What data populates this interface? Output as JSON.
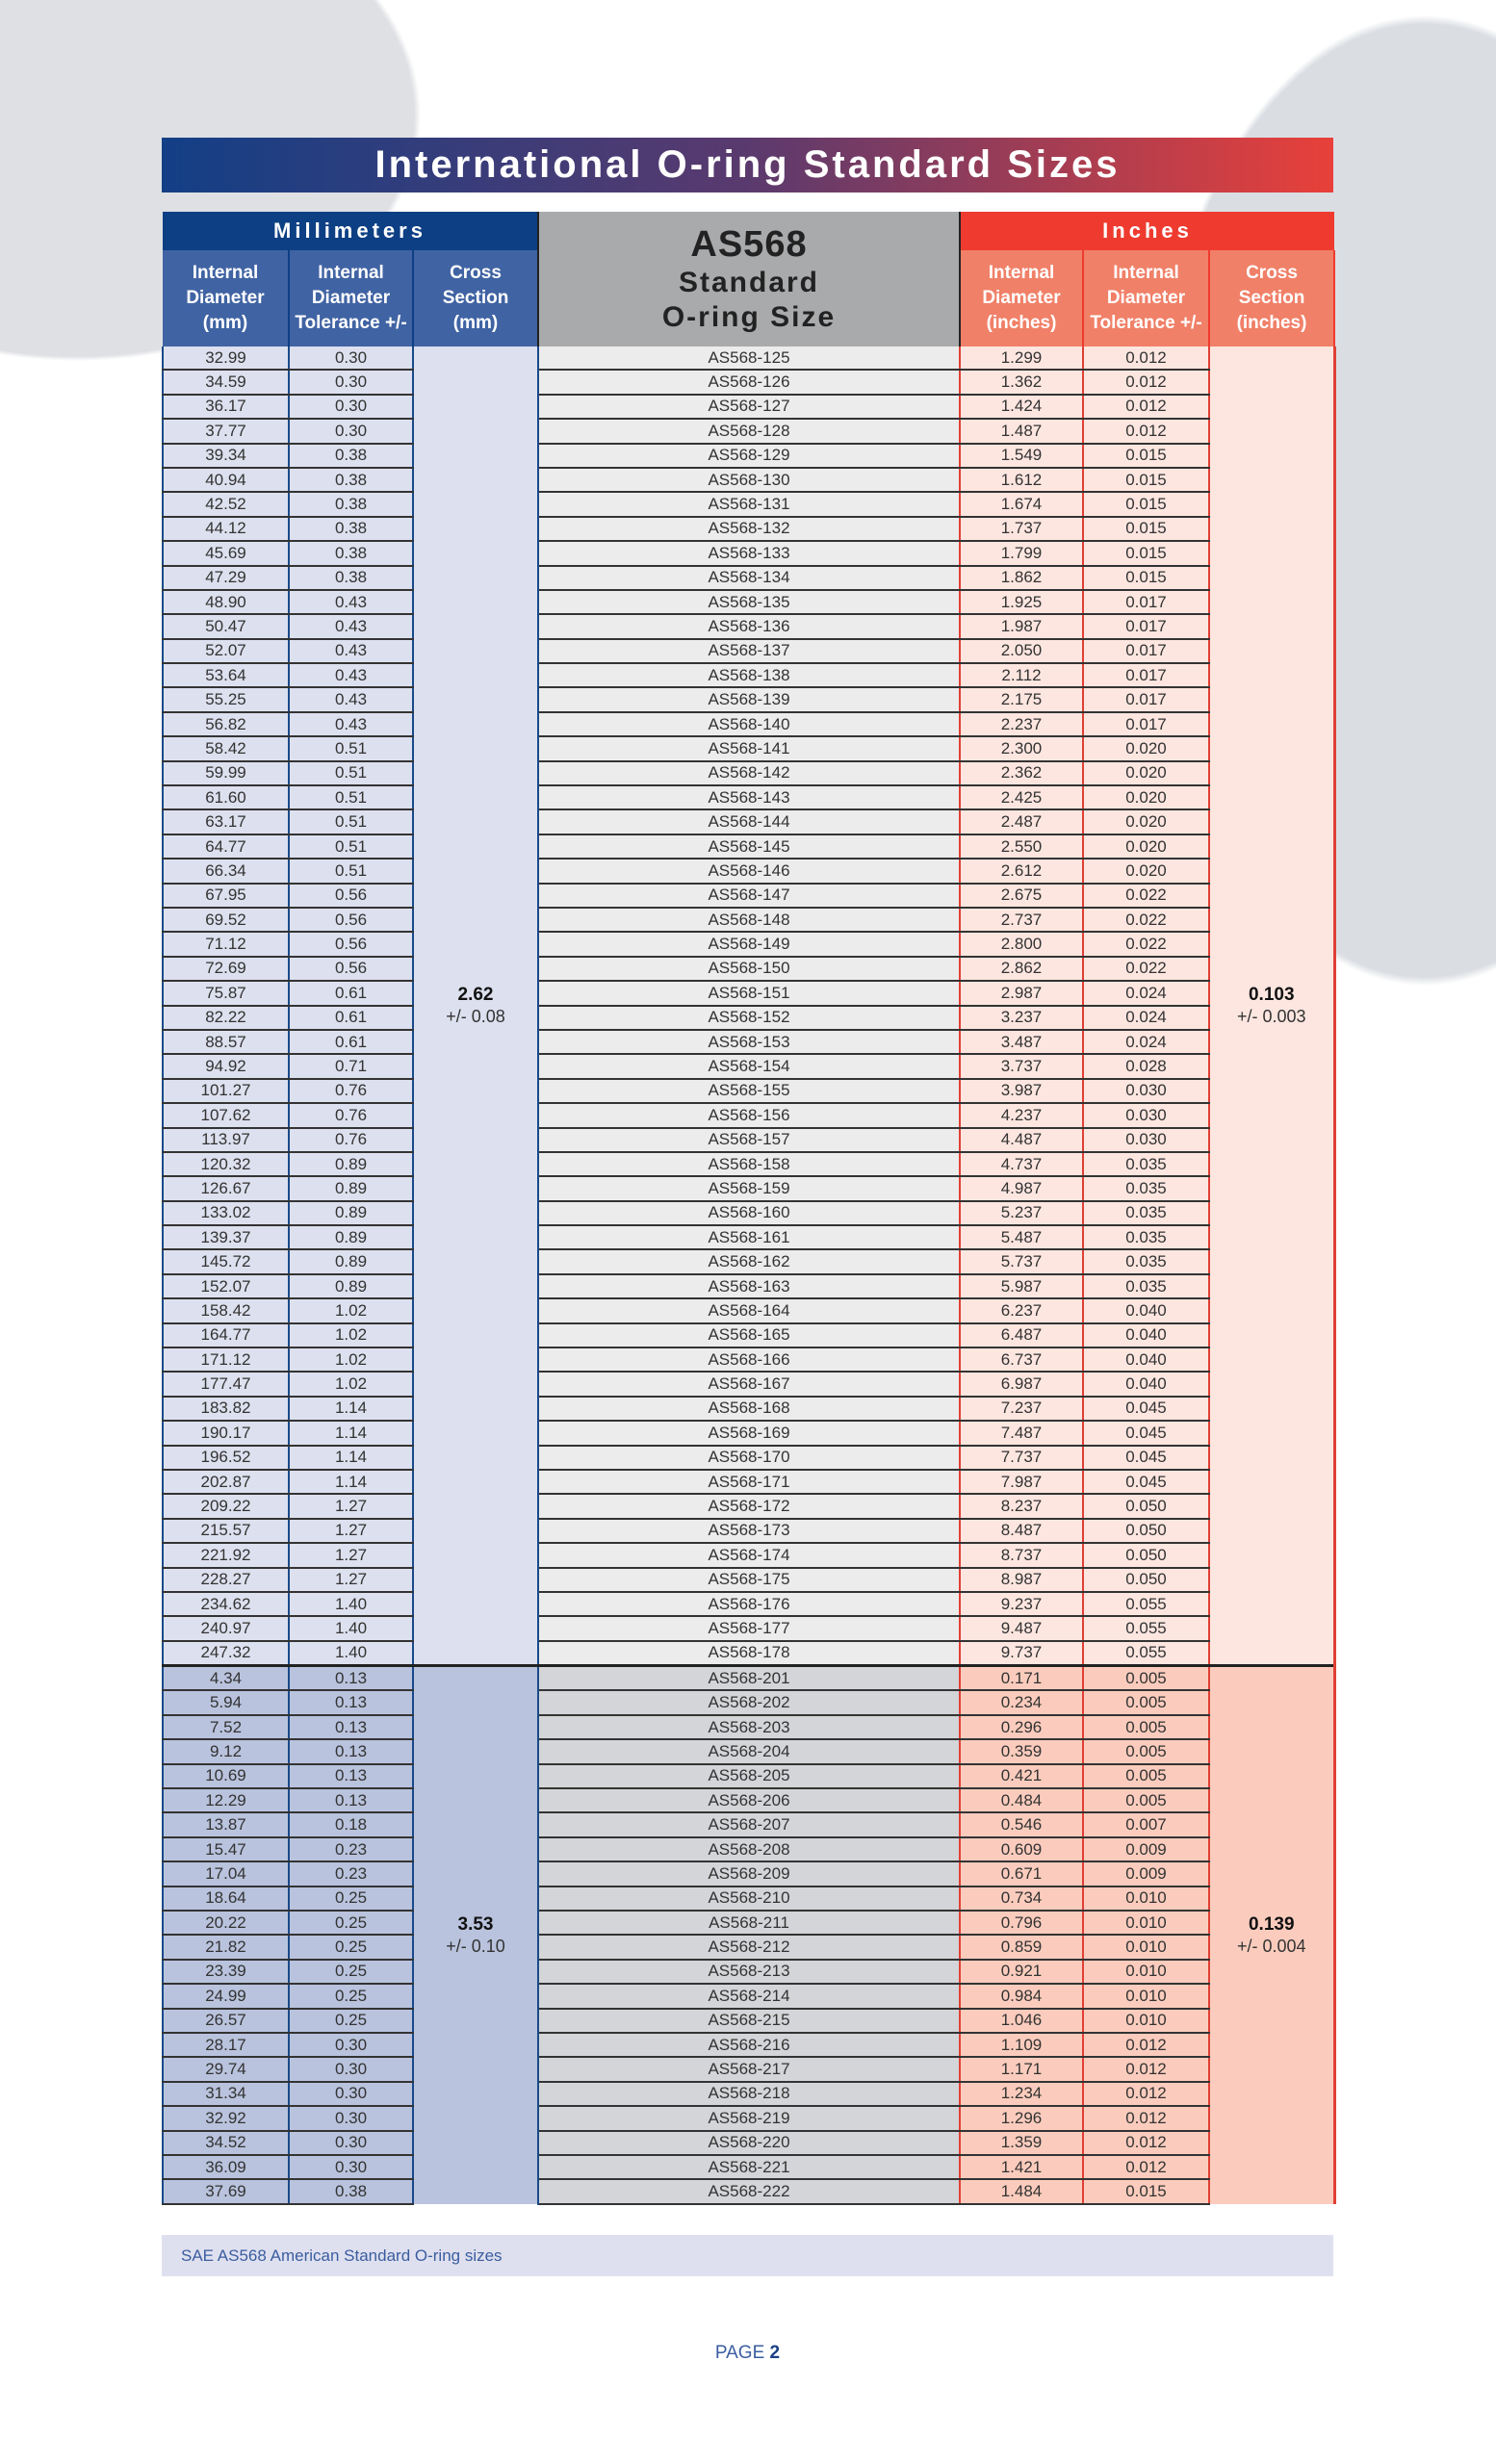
{
  "title": "International O-ring Standard Sizes",
  "header": {
    "mm_group": "Millimeters",
    "inch_group": "Inches",
    "as_title": "AS568",
    "as_sub1": "Standard",
    "as_sub2": "O-ring Size",
    "mm_cols": [
      [
        "Internal",
        "Diameter",
        "(mm)"
      ],
      [
        "Internal",
        "Diameter",
        "Tolerance +/-"
      ],
      [
        "Cross",
        "Section",
        "(mm)"
      ]
    ],
    "in_cols": [
      [
        "Internal",
        "Diameter",
        "(inches)"
      ],
      [
        "Internal",
        "Diameter",
        "Tolerance +/-"
      ],
      [
        "Cross",
        "Section",
        "(inches)"
      ]
    ]
  },
  "sections": [
    {
      "cross_mm": "2.62",
      "cross_mm_tol": "+/- 0.08",
      "cross_in": "0.103",
      "cross_in_tol": "+/- 0.003",
      "rows": [
        [
          "32.99",
          "0.30",
          "AS568-125",
          "1.299",
          "0.012"
        ],
        [
          "34.59",
          "0.30",
          "AS568-126",
          "1.362",
          "0.012"
        ],
        [
          "36.17",
          "0.30",
          "AS568-127",
          "1.424",
          "0.012"
        ],
        [
          "37.77",
          "0.30",
          "AS568-128",
          "1.487",
          "0.012"
        ],
        [
          "39.34",
          "0.38",
          "AS568-129",
          "1.549",
          "0.015"
        ],
        [
          "40.94",
          "0.38",
          "AS568-130",
          "1.612",
          "0.015"
        ],
        [
          "42.52",
          "0.38",
          "AS568-131",
          "1.674",
          "0.015"
        ],
        [
          "44.12",
          "0.38",
          "AS568-132",
          "1.737",
          "0.015"
        ],
        [
          "45.69",
          "0.38",
          "AS568-133",
          "1.799",
          "0.015"
        ],
        [
          "47.29",
          "0.38",
          "AS568-134",
          "1.862",
          "0.015"
        ],
        [
          "48.90",
          "0.43",
          "AS568-135",
          "1.925",
          "0.017"
        ],
        [
          "50.47",
          "0.43",
          "AS568-136",
          "1.987",
          "0.017"
        ],
        [
          "52.07",
          "0.43",
          "AS568-137",
          "2.050",
          "0.017"
        ],
        [
          "53.64",
          "0.43",
          "AS568-138",
          "2.112",
          "0.017"
        ],
        [
          "55.25",
          "0.43",
          "AS568-139",
          "2.175",
          "0.017"
        ],
        [
          "56.82",
          "0.43",
          "AS568-140",
          "2.237",
          "0.017"
        ],
        [
          "58.42",
          "0.51",
          "AS568-141",
          "2.300",
          "0.020"
        ],
        [
          "59.99",
          "0.51",
          "AS568-142",
          "2.362",
          "0.020"
        ],
        [
          "61.60",
          "0.51",
          "AS568-143",
          "2.425",
          "0.020"
        ],
        [
          "63.17",
          "0.51",
          "AS568-144",
          "2.487",
          "0.020"
        ],
        [
          "64.77",
          "0.51",
          "AS568-145",
          "2.550",
          "0.020"
        ],
        [
          "66.34",
          "0.51",
          "AS568-146",
          "2.612",
          "0.020"
        ],
        [
          "67.95",
          "0.56",
          "AS568-147",
          "2.675",
          "0.022"
        ],
        [
          "69.52",
          "0.56",
          "AS568-148",
          "2.737",
          "0.022"
        ],
        [
          "71.12",
          "0.56",
          "AS568-149",
          "2.800",
          "0.022"
        ],
        [
          "72.69",
          "0.56",
          "AS568-150",
          "2.862",
          "0.022"
        ],
        [
          "75.87",
          "0.61",
          "AS568-151",
          "2.987",
          "0.024"
        ],
        [
          "82.22",
          "0.61",
          "AS568-152",
          "3.237",
          "0.024"
        ],
        [
          "88.57",
          "0.61",
          "AS568-153",
          "3.487",
          "0.024"
        ],
        [
          "94.92",
          "0.71",
          "AS568-154",
          "3.737",
          "0.028"
        ],
        [
          "101.27",
          "0.76",
          "AS568-155",
          "3.987",
          "0.030"
        ],
        [
          "107.62",
          "0.76",
          "AS568-156",
          "4.237",
          "0.030"
        ],
        [
          "113.97",
          "0.76",
          "AS568-157",
          "4.487",
          "0.030"
        ],
        [
          "120.32",
          "0.89",
          "AS568-158",
          "4.737",
          "0.035"
        ],
        [
          "126.67",
          "0.89",
          "AS568-159",
          "4.987",
          "0.035"
        ],
        [
          "133.02",
          "0.89",
          "AS568-160",
          "5.237",
          "0.035"
        ],
        [
          "139.37",
          "0.89",
          "AS568-161",
          "5.487",
          "0.035"
        ],
        [
          "145.72",
          "0.89",
          "AS568-162",
          "5.737",
          "0.035"
        ],
        [
          "152.07",
          "0.89",
          "AS568-163",
          "5.987",
          "0.035"
        ],
        [
          "158.42",
          "1.02",
          "AS568-164",
          "6.237",
          "0.040"
        ],
        [
          "164.77",
          "1.02",
          "AS568-165",
          "6.487",
          "0.040"
        ],
        [
          "171.12",
          "1.02",
          "AS568-166",
          "6.737",
          "0.040"
        ],
        [
          "177.47",
          "1.02",
          "AS568-167",
          "6.987",
          "0.040"
        ],
        [
          "183.82",
          "1.14",
          "AS568-168",
          "7.237",
          "0.045"
        ],
        [
          "190.17",
          "1.14",
          "AS568-169",
          "7.487",
          "0.045"
        ],
        [
          "196.52",
          "1.14",
          "AS568-170",
          "7.737",
          "0.045"
        ],
        [
          "202.87",
          "1.14",
          "AS568-171",
          "7.987",
          "0.045"
        ],
        [
          "209.22",
          "1.27",
          "AS568-172",
          "8.237",
          "0.050"
        ],
        [
          "215.57",
          "1.27",
          "AS568-173",
          "8.487",
          "0.050"
        ],
        [
          "221.92",
          "1.27",
          "AS568-174",
          "8.737",
          "0.050"
        ],
        [
          "228.27",
          "1.27",
          "AS568-175",
          "8.987",
          "0.050"
        ],
        [
          "234.62",
          "1.40",
          "AS568-176",
          "9.237",
          "0.055"
        ],
        [
          "240.97",
          "1.40",
          "AS568-177",
          "9.487",
          "0.055"
        ],
        [
          "247.32",
          "1.40",
          "AS568-178",
          "9.737",
          "0.055"
        ]
      ]
    },
    {
      "cross_mm": "3.53",
      "cross_mm_tol": "+/- 0.10",
      "cross_in": "0.139",
      "cross_in_tol": "+/- 0.004",
      "rows": [
        [
          "4.34",
          "0.13",
          "AS568-201",
          "0.171",
          "0.005"
        ],
        [
          "5.94",
          "0.13",
          "AS568-202",
          "0.234",
          "0.005"
        ],
        [
          "7.52",
          "0.13",
          "AS568-203",
          "0.296",
          "0.005"
        ],
        [
          "9.12",
          "0.13",
          "AS568-204",
          "0.359",
          "0.005"
        ],
        [
          "10.69",
          "0.13",
          "AS568-205",
          "0.421",
          "0.005"
        ],
        [
          "12.29",
          "0.13",
          "AS568-206",
          "0.484",
          "0.005"
        ],
        [
          "13.87",
          "0.18",
          "AS568-207",
          "0.546",
          "0.007"
        ],
        [
          "15.47",
          "0.23",
          "AS568-208",
          "0.609",
          "0.009"
        ],
        [
          "17.04",
          "0.23",
          "AS568-209",
          "0.671",
          "0.009"
        ],
        [
          "18.64",
          "0.25",
          "AS568-210",
          "0.734",
          "0.010"
        ],
        [
          "20.22",
          "0.25",
          "AS568-211",
          "0.796",
          "0.010"
        ],
        [
          "21.82",
          "0.25",
          "AS568-212",
          "0.859",
          "0.010"
        ],
        [
          "23.39",
          "0.25",
          "AS568-213",
          "0.921",
          "0.010"
        ],
        [
          "24.99",
          "0.25",
          "AS568-214",
          "0.984",
          "0.010"
        ],
        [
          "26.57",
          "0.25",
          "AS568-215",
          "1.046",
          "0.010"
        ],
        [
          "28.17",
          "0.30",
          "AS568-216",
          "1.109",
          "0.012"
        ],
        [
          "29.74",
          "0.30",
          "AS568-217",
          "1.171",
          "0.012"
        ],
        [
          "31.34",
          "0.30",
          "AS568-218",
          "1.234",
          "0.012"
        ],
        [
          "32.92",
          "0.30",
          "AS568-219",
          "1.296",
          "0.012"
        ],
        [
          "34.52",
          "0.30",
          "AS568-220",
          "1.359",
          "0.012"
        ],
        [
          "36.09",
          "0.30",
          "AS568-221",
          "1.421",
          "0.012"
        ],
        [
          "37.69",
          "0.38",
          "AS568-222",
          "1.484",
          "0.015"
        ]
      ]
    }
  ],
  "footer_note": "SAE AS568 American Standard O-ring sizes",
  "page_label": "PAGE",
  "page_number": "2"
}
